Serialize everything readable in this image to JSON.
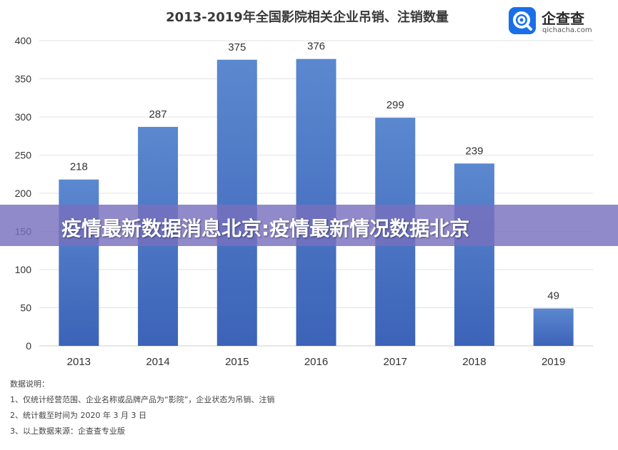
{
  "logo": {
    "name": "企查查",
    "domain": "qichacha.com",
    "icon": "qichacha-magnifier-icon"
  },
  "banner": {
    "text": "疫情最新数据消息北京:疫情最新情况数据北京"
  },
  "notes": {
    "heading": "数据说明：",
    "lines": [
      "1、仅统计经营范围、企业名称或品牌产品为“影院”，企业状态为吊销、注销",
      "2、统计截至时间为 2020 年 3 月 3 日",
      "3、以上数据来源：企查查专业版"
    ]
  },
  "chart_data": {
    "type": "bar",
    "title": "2013-2019年全国影院相关企业吊销、注销数量",
    "categories": [
      "2013",
      "2014",
      "2015",
      "2016",
      "2017",
      "2018",
      "2019"
    ],
    "values": [
      218,
      287,
      375,
      376,
      299,
      239,
      49
    ],
    "ylim": [
      0,
      400
    ],
    "yticks": [
      0,
      50,
      100,
      150,
      200,
      250,
      300,
      350,
      400
    ],
    "xlabel": "",
    "ylabel": "",
    "grid": true,
    "data_labels": true,
    "bar_color_top": "#5b88cf",
    "bar_color_bottom": "#3c63b8",
    "grid_color": "#e3e3e3",
    "axis_color": "#cccccc"
  }
}
